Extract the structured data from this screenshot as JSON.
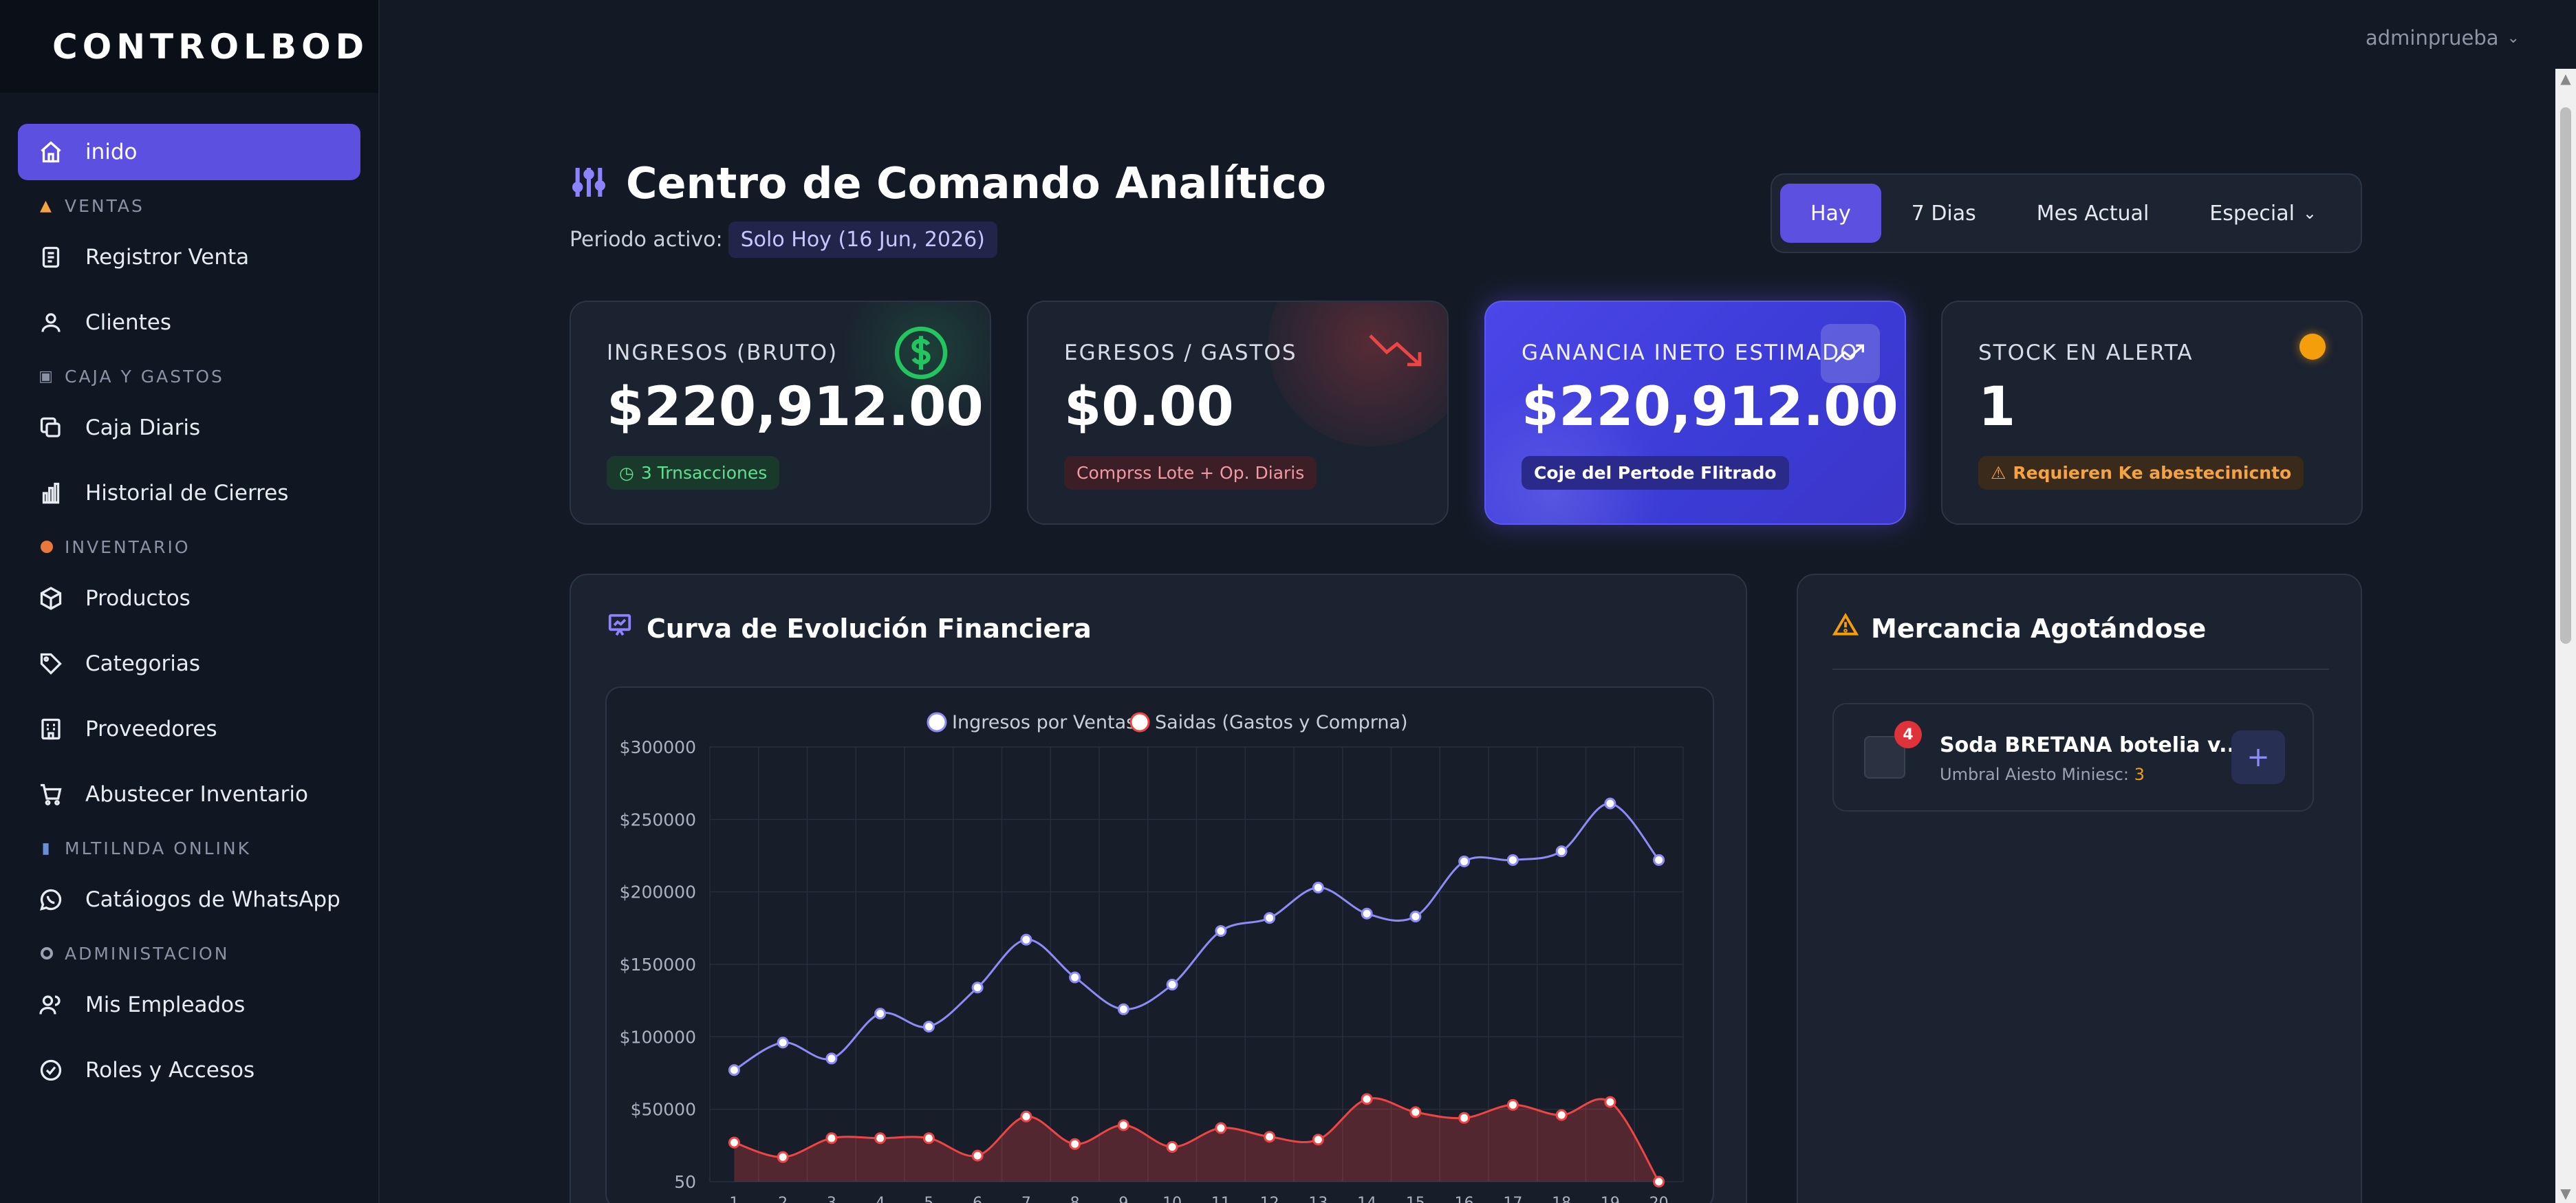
{
  "app": {
    "brand": "CONTROLBOD",
    "user": "adminprueba"
  },
  "sidebar": {
    "items": [
      {
        "type": "item",
        "label": "inido",
        "icon": "home-icon",
        "active": true
      },
      {
        "type": "section",
        "label": "VENTAS",
        "icon": "store-icon"
      },
      {
        "type": "item",
        "label": "Registror Venta",
        "icon": "receipt-icon"
      },
      {
        "type": "item",
        "label": "Clientes",
        "icon": "user-icon"
      },
      {
        "type": "section",
        "label": "CAJA Y GASTOS",
        "icon": "cash-register-icon"
      },
      {
        "type": "item",
        "label": "Caja Diaris",
        "icon": "copy-icon"
      },
      {
        "type": "item",
        "label": "Historial de Cierres",
        "icon": "bar-chart-icon"
      },
      {
        "type": "section",
        "label": "INVENTARIO",
        "icon": "circle-icon"
      },
      {
        "type": "item",
        "label": "Productos",
        "icon": "box-icon"
      },
      {
        "type": "item",
        "label": "Categorias",
        "icon": "tag-icon"
      },
      {
        "type": "item",
        "label": "Proveedores",
        "icon": "building-icon"
      },
      {
        "type": "item",
        "label": "Abustecer Inventario",
        "icon": "cart-icon"
      },
      {
        "type": "section",
        "label": "MLTILNDA ONLINK",
        "icon": "folder-icon"
      },
      {
        "type": "item",
        "label": "Catáiogos de WhatsApp",
        "icon": "whatsapp-icon"
      },
      {
        "type": "section",
        "label": "ADMINISTACION",
        "icon": "dot-icon"
      },
      {
        "type": "item",
        "label": "Mis Empleados",
        "icon": "users-icon"
      },
      {
        "type": "item",
        "label": "Roles y Accesos",
        "icon": "check-badge-icon"
      }
    ]
  },
  "header": {
    "title": "Centro de Comando Analítico",
    "period_label": "Periodo activo:",
    "period_value": "Solo Hoy (16 Jun, 2026)",
    "ranges": [
      "Hay",
      "7 Dias",
      "Mes Actual",
      "Especial"
    ],
    "active_range": "Hay"
  },
  "cards": {
    "income": {
      "label": "INGRESOS (BRUTO)",
      "value": "$220,912.00",
      "badge": "3 Trnsacciones",
      "icon": "dollar-icon",
      "color": "#22c55e"
    },
    "expenses": {
      "label": "EGRESOS / GASTOS",
      "value": "$0.00",
      "badge": "Comprss Lote + Op. Diaris",
      "icon": "trending-down-icon",
      "color": "#ef4444"
    },
    "profit": {
      "label": "GANANCIA INETO ESTIMADO",
      "value": "$220,912.00",
      "badge": "Coje del Pertode Flitrado",
      "icon": "trending-up-icon"
    },
    "stock": {
      "label": "STOCK EN ALERTA",
      "value": "1",
      "badge": "Requieren Ke abestecinicnto",
      "icon": "alert-dot-icon",
      "color": "#f59e0b"
    }
  },
  "chart_panel": {
    "title": "Curva de Evolución Financiera"
  },
  "stock_panel": {
    "title": "Mercancia Agotándose",
    "items": [
      {
        "name": "Soda BRETANA botelia v...",
        "threshold_label": "Umbral Aiesto Miniesc:",
        "threshold_value": "3",
        "count": "4"
      }
    ]
  },
  "chart_data": {
    "type": "line",
    "legend": [
      "Ingresos por Ventas",
      "Saidas (Gastos y Comprna)"
    ],
    "legend_position": "top",
    "grid": true,
    "ylim": [
      0,
      300000
    ],
    "y_ticks": [
      "$300000",
      "$250000",
      "$200000",
      "$150000",
      "$100000",
      "$50000",
      "50"
    ],
    "x": [
      1,
      2,
      3,
      4,
      5,
      6,
      7,
      8,
      9,
      10,
      11,
      12,
      13,
      14,
      15,
      16,
      17,
      18,
      19,
      20
    ],
    "series": [
      {
        "name": "Ingresos por Ventas",
        "color": "#8b8cf7",
        "values": [
          77000,
          96000,
          85000,
          116000,
          107000,
          134000,
          167000,
          141000,
          119000,
          136000,
          173000,
          182000,
          203000,
          185000,
          183000,
          221000,
          222000,
          228000,
          261000,
          222000
        ]
      },
      {
        "name": "Saidas (Gastos y Comprna)",
        "color": "#ef4444",
        "values": [
          27000,
          17000,
          30000,
          30000,
          30000,
          18000,
          45000,
          26000,
          39000,
          24000,
          37000,
          31000,
          29000,
          57000,
          48000,
          44000,
          53000,
          46000,
          55000,
          0
        ]
      }
    ]
  }
}
